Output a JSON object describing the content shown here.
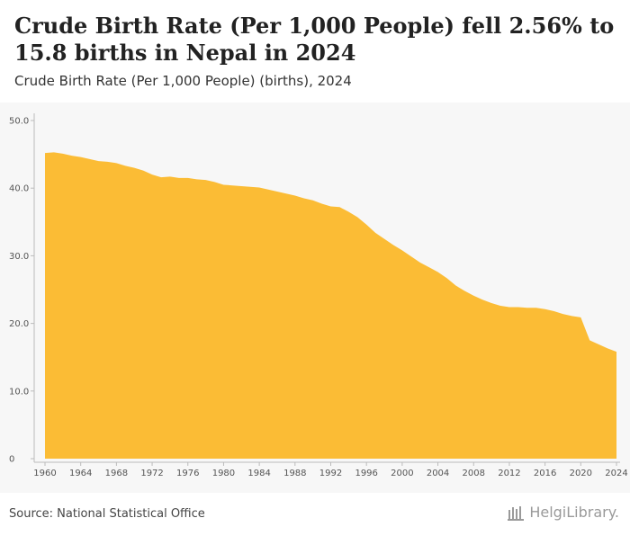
{
  "title": "Crude Birth Rate (Per 1,000 People) fell 2.56% to 15.8 births in Nepal in 2024",
  "subtitle": "Crude Birth Rate (Per 1,000 People) (births), 2024",
  "source": "Source: National Statistical Office",
  "brand": "HelgiLibrary.",
  "colors": {
    "area": "#fbbc35",
    "plot_bg": "#f7f7f7",
    "tick_text": "#555555",
    "brand": "#9a9a9a"
  },
  "chart_data": {
    "type": "area",
    "title": "Crude Birth Rate (Per 1,000 People) fell 2.56% to 15.8 births in Nepal in 2024",
    "subtitle": "Crude Birth Rate (Per 1,000 People) (births), 2024",
    "x": [
      1960,
      1961,
      1962,
      1963,
      1964,
      1965,
      1966,
      1967,
      1968,
      1969,
      1970,
      1971,
      1972,
      1973,
      1974,
      1975,
      1976,
      1977,
      1978,
      1979,
      1980,
      1981,
      1982,
      1983,
      1984,
      1985,
      1986,
      1987,
      1988,
      1989,
      1990,
      1991,
      1992,
      1993,
      1994,
      1995,
      1996,
      1997,
      1998,
      1999,
      2000,
      2001,
      2002,
      2003,
      2004,
      2005,
      2006,
      2007,
      2008,
      2009,
      2010,
      2011,
      2012,
      2013,
      2014,
      2015,
      2016,
      2017,
      2018,
      2019,
      2020,
      2021,
      2022,
      2023,
      2024
    ],
    "values": [
      45.2,
      45.3,
      45.1,
      44.8,
      44.6,
      44.3,
      44.0,
      43.9,
      43.7,
      43.3,
      43.0,
      42.6,
      42.0,
      41.6,
      41.7,
      41.5,
      41.5,
      41.3,
      41.2,
      40.9,
      40.5,
      40.4,
      40.3,
      40.2,
      40.1,
      39.8,
      39.5,
      39.2,
      38.9,
      38.5,
      38.2,
      37.7,
      37.3,
      37.2,
      36.5,
      35.7,
      34.6,
      33.4,
      32.5,
      31.6,
      30.8,
      29.9,
      29.0,
      28.3,
      27.6,
      26.7,
      25.6,
      24.8,
      24.1,
      23.5,
      23.0,
      22.6,
      22.4,
      22.4,
      22.3,
      22.3,
      22.1,
      21.8,
      21.4,
      21.1,
      20.9,
      17.5,
      16.9,
      16.3,
      15.8
    ],
    "x_ticks": [
      "1960",
      "1964",
      "1968",
      "1972",
      "1976",
      "1980",
      "1984",
      "1988",
      "1992",
      "1996",
      "2000",
      "2004",
      "2008",
      "2012",
      "2016",
      "2020",
      "2024"
    ],
    "y_ticks": [
      {
        "value": 0,
        "label": "0"
      },
      {
        "value": 10,
        "label": "10.0"
      },
      {
        "value": 20,
        "label": "20.0"
      },
      {
        "value": 30,
        "label": "30.0"
      },
      {
        "value": 40,
        "label": "40.0"
      },
      {
        "value": 50,
        "label": "50.0"
      }
    ],
    "xlim": [
      1960,
      2024
    ],
    "ylim": [
      0,
      50
    ],
    "grid": false,
    "xlabel": "",
    "ylabel": ""
  }
}
